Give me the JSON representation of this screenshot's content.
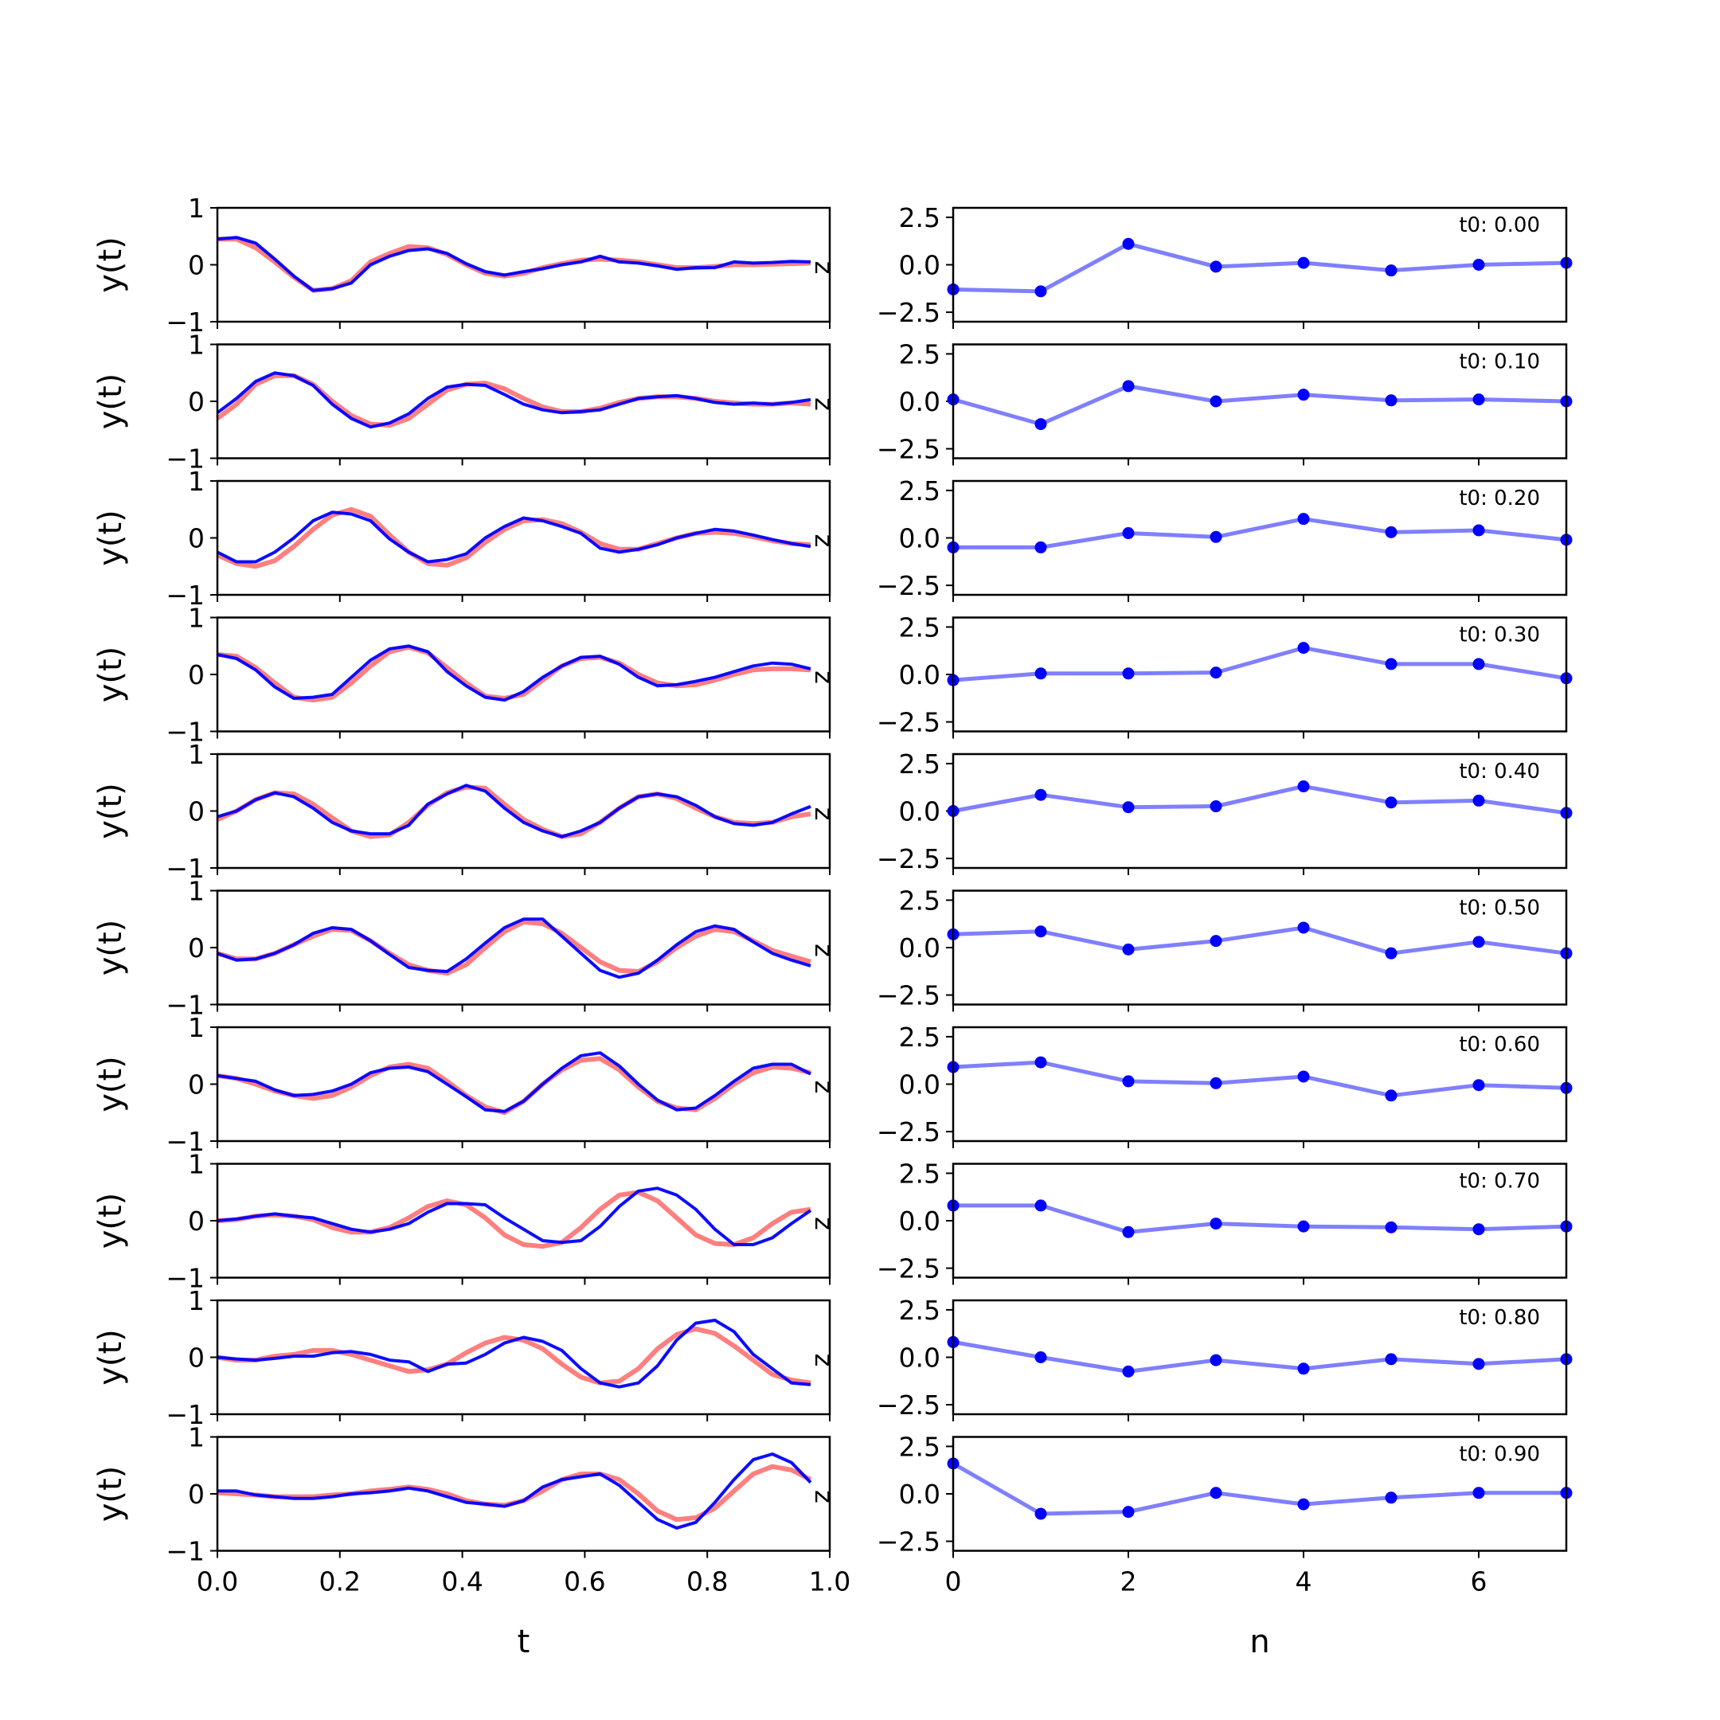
{
  "chart_data": [
    {
      "type": "line",
      "xlabel": "t",
      "ylabel": "y(t)",
      "xlim": [
        0,
        1
      ],
      "ylim": [
        -1,
        1
      ],
      "xticks": [
        "0.0",
        "0.2",
        "0.4",
        "0.6",
        "0.8",
        "1.0"
      ],
      "yticks": [
        "1",
        "0",
        "−1"
      ],
      "grid": false,
      "legend": "none",
      "annotation": "z",
      "series_colors": {
        "reference": "#ff7f7f",
        "reconstruction": "#0000ff"
      },
      "x": [
        0.0,
        0.03125,
        0.0625,
        0.09375,
        0.125,
        0.15625,
        0.1875,
        0.21875,
        0.25,
        0.28125,
        0.3125,
        0.34375,
        0.375,
        0.40625,
        0.4375,
        0.46875,
        0.5,
        0.53125,
        0.5625,
        0.59375,
        0.625,
        0.65625,
        0.6875,
        0.71875,
        0.75,
        0.78125,
        0.8125,
        0.84375,
        0.875,
        0.90625,
        0.9375,
        0.96875
      ],
      "panels": [
        {
          "reference": [
            0.45,
            0.45,
            0.3,
            0.05,
            -0.22,
            -0.45,
            -0.42,
            -0.28,
            0.05,
            0.2,
            0.32,
            0.3,
            0.18,
            0.0,
            -0.15,
            -0.2,
            -0.15,
            -0.05,
            0.02,
            0.08,
            0.1,
            0.08,
            0.05,
            0.0,
            -0.05,
            -0.05,
            -0.03,
            0.0,
            0.0,
            0.01,
            0.02,
            0.03
          ],
          "reconstruction": [
            0.45,
            0.48,
            0.38,
            0.1,
            -0.2,
            -0.45,
            -0.42,
            -0.32,
            0.0,
            0.15,
            0.25,
            0.28,
            0.2,
            0.02,
            -0.12,
            -0.18,
            -0.12,
            -0.07,
            0.0,
            0.05,
            0.15,
            0.05,
            0.03,
            -0.02,
            -0.08,
            -0.05,
            -0.05,
            0.05,
            0.03,
            0.04,
            0.06,
            0.05
          ]
        },
        {
          "reference": [
            -0.3,
            -0.05,
            0.3,
            0.45,
            0.45,
            0.3,
            0.0,
            -0.25,
            -0.4,
            -0.42,
            -0.3,
            -0.05,
            0.2,
            0.3,
            0.32,
            0.22,
            0.05,
            -0.1,
            -0.18,
            -0.18,
            -0.12,
            -0.02,
            0.05,
            0.08,
            0.08,
            0.05,
            0.0,
            -0.03,
            -0.05,
            -0.05,
            -0.03,
            -0.05
          ],
          "reconstruction": [
            -0.2,
            0.05,
            0.35,
            0.5,
            0.45,
            0.28,
            -0.05,
            -0.3,
            -0.45,
            -0.38,
            -0.22,
            0.05,
            0.25,
            0.3,
            0.28,
            0.12,
            -0.05,
            -0.15,
            -0.2,
            -0.18,
            -0.15,
            -0.05,
            0.05,
            0.08,
            0.1,
            0.05,
            -0.02,
            -0.05,
            -0.03,
            -0.05,
            -0.02,
            0.03
          ]
        },
        {
          "reference": [
            -0.3,
            -0.45,
            -0.5,
            -0.4,
            -0.15,
            0.15,
            0.4,
            0.5,
            0.38,
            0.05,
            -0.25,
            -0.45,
            -0.48,
            -0.35,
            -0.08,
            0.15,
            0.3,
            0.32,
            0.25,
            0.1,
            -0.1,
            -0.2,
            -0.2,
            -0.1,
            0.0,
            0.08,
            0.1,
            0.08,
            0.02,
            -0.05,
            -0.1,
            -0.12
          ],
          "reconstruction": [
            -0.25,
            -0.42,
            -0.42,
            -0.25,
            0.0,
            0.3,
            0.45,
            0.42,
            0.3,
            -0.02,
            -0.25,
            -0.42,
            -0.38,
            -0.28,
            0.0,
            0.2,
            0.35,
            0.3,
            0.2,
            0.08,
            -0.18,
            -0.25,
            -0.2,
            -0.12,
            0.0,
            0.08,
            0.15,
            0.12,
            0.05,
            -0.03,
            -0.1,
            -0.15
          ]
        },
        {
          "reference": [
            0.35,
            0.32,
            0.12,
            -0.15,
            -0.4,
            -0.45,
            -0.4,
            -0.15,
            0.15,
            0.4,
            0.48,
            0.38,
            0.12,
            -0.15,
            -0.38,
            -0.42,
            -0.35,
            -0.1,
            0.15,
            0.28,
            0.3,
            0.2,
            0.0,
            -0.15,
            -0.2,
            -0.18,
            -0.1,
            0.0,
            0.08,
            0.1,
            0.1,
            0.08
          ],
          "reconstruction": [
            0.35,
            0.28,
            0.08,
            -0.22,
            -0.42,
            -0.4,
            -0.35,
            -0.05,
            0.25,
            0.45,
            0.5,
            0.4,
            0.05,
            -0.2,
            -0.4,
            -0.45,
            -0.3,
            -0.05,
            0.15,
            0.3,
            0.32,
            0.18,
            -0.05,
            -0.2,
            -0.18,
            -0.12,
            -0.05,
            0.05,
            0.15,
            0.2,
            0.18,
            0.1
          ]
        },
        {
          "reference": [
            -0.15,
            0.0,
            0.2,
            0.32,
            0.3,
            0.12,
            -0.12,
            -0.35,
            -0.45,
            -0.42,
            -0.2,
            0.1,
            0.32,
            0.42,
            0.4,
            0.12,
            -0.15,
            -0.32,
            -0.45,
            -0.4,
            -0.2,
            0.05,
            0.25,
            0.3,
            0.22,
            0.05,
            -0.1,
            -0.2,
            -0.22,
            -0.2,
            -0.1,
            -0.05
          ],
          "reconstruction": [
            -0.1,
            0.0,
            0.2,
            0.32,
            0.25,
            0.05,
            -0.2,
            -0.35,
            -0.4,
            -0.4,
            -0.25,
            0.12,
            0.3,
            0.45,
            0.35,
            0.05,
            -0.2,
            -0.35,
            -0.45,
            -0.35,
            -0.2,
            0.05,
            0.25,
            0.3,
            0.25,
            0.1,
            -0.1,
            -0.22,
            -0.25,
            -0.2,
            -0.05,
            0.08
          ]
        },
        {
          "reference": [
            -0.1,
            -0.2,
            -0.2,
            -0.1,
            0.05,
            0.2,
            0.32,
            0.3,
            0.12,
            -0.1,
            -0.3,
            -0.4,
            -0.45,
            -0.3,
            0.0,
            0.28,
            0.45,
            0.42,
            0.25,
            0.0,
            -0.25,
            -0.4,
            -0.42,
            -0.25,
            0.0,
            0.2,
            0.32,
            0.28,
            0.12,
            -0.05,
            -0.15,
            -0.25
          ],
          "reconstruction": [
            -0.1,
            -0.22,
            -0.2,
            -0.1,
            0.05,
            0.25,
            0.35,
            0.32,
            0.12,
            -0.12,
            -0.35,
            -0.4,
            -0.42,
            -0.2,
            0.08,
            0.35,
            0.5,
            0.5,
            0.2,
            -0.1,
            -0.4,
            -0.52,
            -0.45,
            -0.22,
            0.05,
            0.28,
            0.38,
            0.32,
            0.1,
            -0.1,
            -0.22,
            -0.32
          ]
        },
        {
          "reference": [
            0.15,
            0.1,
            0.0,
            -0.12,
            -0.2,
            -0.25,
            -0.2,
            -0.05,
            0.15,
            0.3,
            0.35,
            0.28,
            0.05,
            -0.2,
            -0.4,
            -0.5,
            -0.3,
            0.0,
            0.25,
            0.42,
            0.45,
            0.25,
            -0.05,
            -0.3,
            -0.42,
            -0.45,
            -0.25,
            0.0,
            0.2,
            0.3,
            0.28,
            0.2
          ],
          "reconstruction": [
            0.15,
            0.1,
            0.05,
            -0.1,
            -0.2,
            -0.18,
            -0.12,
            0.0,
            0.2,
            0.28,
            0.3,
            0.22,
            0.0,
            -0.22,
            -0.45,
            -0.48,
            -0.3,
            0.0,
            0.28,
            0.5,
            0.55,
            0.32,
            0.0,
            -0.28,
            -0.45,
            -0.42,
            -0.2,
            0.05,
            0.28,
            0.35,
            0.35,
            0.18
          ]
        },
        {
          "reference": [
            0.0,
            0.02,
            0.08,
            0.1,
            0.08,
            0.02,
            -0.12,
            -0.2,
            -0.2,
            -0.12,
            0.05,
            0.25,
            0.35,
            0.28,
            0.05,
            -0.25,
            -0.42,
            -0.45,
            -0.38,
            -0.12,
            0.2,
            0.45,
            0.5,
            0.35,
            0.05,
            -0.25,
            -0.4,
            -0.42,
            -0.3,
            -0.05,
            0.15,
            0.2
          ],
          "reconstruction": [
            0.0,
            0.03,
            0.08,
            0.12,
            0.08,
            0.05,
            -0.05,
            -0.15,
            -0.2,
            -0.15,
            -0.05,
            0.15,
            0.3,
            0.3,
            0.28,
            0.05,
            -0.15,
            -0.35,
            -0.38,
            -0.35,
            -0.1,
            0.25,
            0.52,
            0.57,
            0.45,
            0.2,
            -0.15,
            -0.42,
            -0.42,
            -0.3,
            -0.05,
            0.18
          ]
        },
        {
          "reference": [
            0.0,
            -0.05,
            -0.05,
            0.02,
            0.05,
            0.12,
            0.12,
            0.05,
            -0.05,
            -0.15,
            -0.25,
            -0.22,
            -0.12,
            0.08,
            0.25,
            0.35,
            0.3,
            0.15,
            -0.12,
            -0.35,
            -0.45,
            -0.42,
            -0.2,
            0.15,
            0.4,
            0.5,
            0.42,
            0.2,
            -0.05,
            -0.3,
            -0.4,
            -0.45
          ],
          "reconstruction": [
            0.0,
            -0.03,
            -0.05,
            -0.02,
            0.02,
            0.02,
            0.08,
            0.1,
            0.05,
            -0.05,
            -0.08,
            -0.25,
            -0.12,
            -0.1,
            0.05,
            0.25,
            0.35,
            0.28,
            0.12,
            -0.2,
            -0.45,
            -0.52,
            -0.45,
            -0.15,
            0.3,
            0.6,
            0.65,
            0.45,
            0.05,
            -0.2,
            -0.45,
            -0.48
          ]
        },
        {
          "reference": [
            0.02,
            0.0,
            -0.02,
            -0.05,
            -0.05,
            -0.05,
            -0.02,
            0.0,
            0.05,
            0.08,
            0.12,
            0.08,
            0.0,
            -0.12,
            -0.18,
            -0.2,
            -0.12,
            0.05,
            0.25,
            0.35,
            0.35,
            0.25,
            0.0,
            -0.3,
            -0.45,
            -0.42,
            -0.25,
            0.05,
            0.35,
            0.48,
            0.42,
            0.25
          ],
          "reconstruction": [
            0.05,
            0.05,
            -0.02,
            -0.05,
            -0.08,
            -0.08,
            -0.05,
            0.0,
            0.02,
            0.05,
            0.1,
            0.05,
            -0.05,
            -0.15,
            -0.18,
            -0.22,
            -0.12,
            0.12,
            0.25,
            0.3,
            0.35,
            0.15,
            -0.15,
            -0.45,
            -0.6,
            -0.5,
            -0.15,
            0.25,
            0.6,
            0.7,
            0.55,
            0.2
          ]
        }
      ]
    },
    {
      "type": "line",
      "xlabel": "n",
      "ylabel": "",
      "xlim": [
        0,
        7
      ],
      "ylim": [
        -3,
        3
      ],
      "xticks": [
        "0",
        "2",
        "4",
        "6"
      ],
      "yticks": [
        "2.5",
        "0.0",
        "−2.5"
      ],
      "grid": false,
      "legend": "none",
      "series_color": "#0000ff",
      "x": [
        0,
        1,
        2,
        3,
        4,
        5,
        6,
        7
      ],
      "panels": [
        {
          "label": "t0: 0.00",
          "values": [
            -1.3,
            -1.4,
            1.1,
            -0.1,
            0.1,
            -0.3,
            0.0,
            0.1
          ]
        },
        {
          "label": "t0: 0.10",
          "values": [
            0.1,
            -1.2,
            0.8,
            0.0,
            0.35,
            0.05,
            0.1,
            0.0
          ]
        },
        {
          "label": "t0: 0.20",
          "values": [
            -0.5,
            -0.5,
            0.25,
            0.05,
            1.0,
            0.3,
            0.4,
            -0.1
          ]
        },
        {
          "label": "t0: 0.30",
          "values": [
            -0.3,
            0.05,
            0.05,
            0.1,
            1.4,
            0.55,
            0.55,
            -0.2
          ]
        },
        {
          "label": "t0: 0.40",
          "values": [
            0.0,
            0.85,
            0.2,
            0.25,
            1.3,
            0.45,
            0.55,
            -0.1
          ]
        },
        {
          "label": "t0: 0.50",
          "values": [
            0.7,
            0.85,
            -0.1,
            0.35,
            1.05,
            -0.3,
            0.3,
            -0.3
          ]
        },
        {
          "label": "t0: 0.60",
          "values": [
            0.9,
            1.15,
            0.15,
            0.05,
            0.4,
            -0.6,
            -0.05,
            -0.2
          ]
        },
        {
          "label": "t0: 0.70",
          "values": [
            0.8,
            0.8,
            -0.6,
            -0.15,
            -0.3,
            -0.35,
            -0.45,
            -0.3
          ]
        },
        {
          "label": "t0: 0.80",
          "values": [
            0.8,
            0.0,
            -0.75,
            -0.15,
            -0.6,
            -0.1,
            -0.35,
            -0.1
          ]
        },
        {
          "label": "t0: 0.90",
          "values": [
            1.6,
            -1.05,
            -0.95,
            0.05,
            -0.55,
            -0.2,
            0.05,
            0.05
          ]
        }
      ]
    }
  ]
}
